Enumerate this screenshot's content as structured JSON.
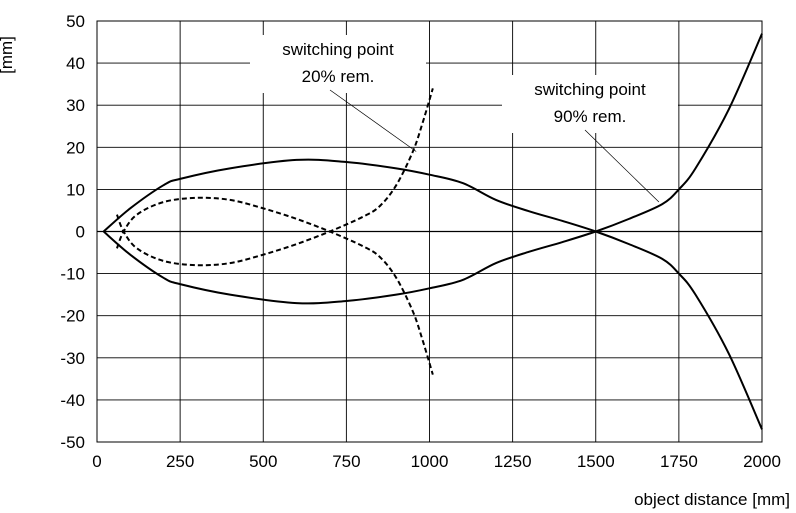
{
  "chart_data": {
    "type": "line",
    "title": "",
    "xlabel": "object distance [mm]",
    "ylabel": "[mm]",
    "xlim": [
      0,
      2000
    ],
    "ylim": [
      -50,
      50
    ],
    "xticks": [
      0,
      250,
      500,
      750,
      1000,
      1250,
      1500,
      1750,
      2000
    ],
    "yticks": [
      -50,
      -40,
      -30,
      -20,
      -10,
      0,
      10,
      20,
      30,
      40,
      50
    ],
    "xtick_labels": [
      "0",
      "250",
      "500",
      "750",
      "1000",
      "1250",
      "1500",
      "1750",
      "2000"
    ],
    "ytick_labels": [
      "-50",
      "-40",
      "-30",
      "-20",
      "-10",
      "0",
      "10",
      "20",
      "30",
      "40",
      "50"
    ],
    "grid": true,
    "legend": "none",
    "series": [
      {
        "style": "solid",
        "x": [
          20,
          100,
          200,
          250,
          400,
          600,
          750,
          900,
          1000,
          1100,
          1200,
          1300,
          1400,
          1500,
          1600,
          1700,
          1750,
          1800,
          1900,
          2000
        ],
        "y": [
          0,
          5.5,
          11,
          12.5,
          15,
          17,
          16.5,
          15,
          13.5,
          11.5,
          7.5,
          4.8,
          2.5,
          0,
          -3,
          -6.5,
          -10,
          -15,
          -29,
          -47
        ]
      },
      {
        "style": "solid",
        "x": [
          20,
          100,
          200,
          250,
          400,
          600,
          750,
          900,
          1000,
          1100,
          1200,
          1300,
          1400,
          1500,
          1600,
          1700,
          1750,
          1800,
          1900,
          2000
        ],
        "y": [
          0,
          -5.5,
          -11,
          -12.5,
          -15,
          -17,
          -16.5,
          -15,
          -13.5,
          -11.5,
          -7.5,
          -4.8,
          -2.5,
          0,
          3,
          6.5,
          10,
          15,
          29,
          47
        ]
      },
      {
        "style": "dashed",
        "x": [
          60,
          80,
          120,
          200,
          300,
          400,
          500,
          600,
          700,
          800,
          850,
          900,
          950,
          980,
          1010
        ],
        "y": [
          4,
          0,
          -4,
          -7,
          -8,
          -7.5,
          -5.5,
          -3,
          0,
          3.5,
          6,
          11,
          19,
          26,
          34
        ]
      },
      {
        "style": "dashed",
        "x": [
          60,
          80,
          120,
          200,
          300,
          400,
          500,
          600,
          700,
          800,
          850,
          900,
          950,
          980,
          1010
        ],
        "y": [
          -4,
          0,
          4,
          7,
          8,
          7.5,
          5.5,
          3,
          0,
          -3.5,
          -6,
          -11,
          -19,
          -26,
          -34
        ]
      }
    ],
    "annotations": [
      {
        "lines": [
          "switching point",
          "20% rem."
        ],
        "points_to": [
          960,
          19
        ]
      },
      {
        "lines": [
          "switching point",
          "90% rem."
        ],
        "points_to": [
          1690,
          7
        ]
      }
    ]
  }
}
